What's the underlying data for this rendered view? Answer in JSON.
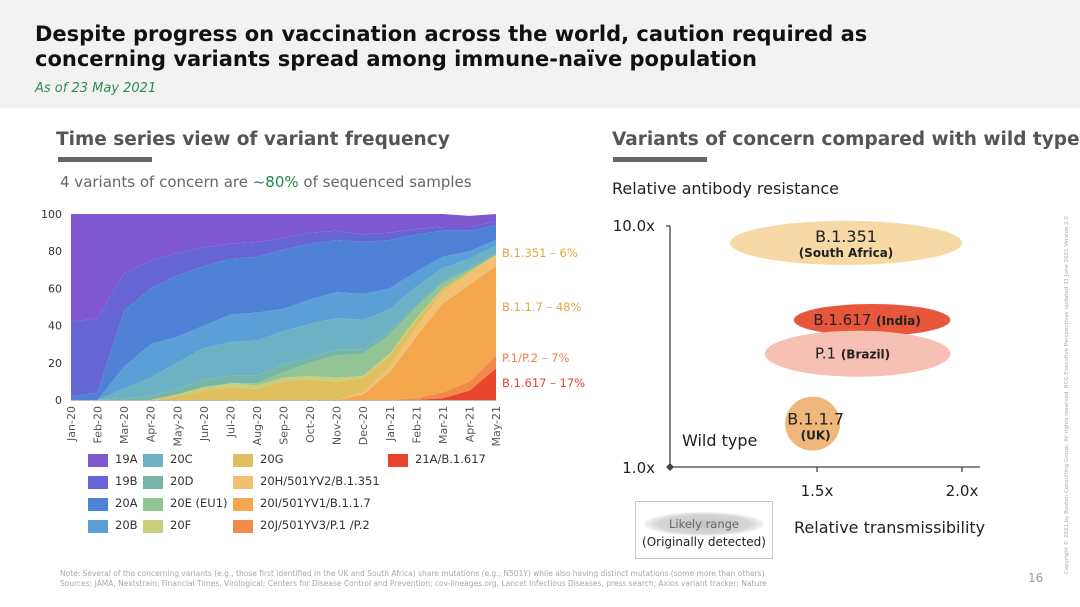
{
  "header": {
    "title_line1": "Despite progress on vaccination across the world, caution required as",
    "title_line2": "concerning variants spread among immune-naïve population",
    "as_of": "As of 23 May 2021"
  },
  "left": {
    "heading": "Time series view of variant frequency",
    "subline_pre": "4 variants of concern are ",
    "subline_hl": "~80%",
    "subline_post": " of sequenced samples"
  },
  "right": {
    "heading": "Variants of concern compared with wild type",
    "ylabel": "Relative antibody resistance",
    "xlabel": "Relative transmissibility",
    "likely_line1": "Likely range",
    "likely_line2": "(Originally detected)"
  },
  "notes": {
    "note": "Note: Several of the concerning variants (e.g., those first identified in the UK and South Africa) share mutations (e.g., N501Y) while also having distinct mutations (some more than others)",
    "sources": "Sources: JAMA, Nextstrain, Financial Times, Virological; Centers for Disease Control and Prevention; cov-lineages.org, Lancet Infectious Diseases, press search; Axios variant tracker; Nature",
    "page": "16",
    "copyright": "Copyright © 2021 by Boston Consulting Group. All rights reserved. BCG Executive Perspectives updated 31 June 2021 Version 2.0"
  },
  "chart_data": [
    {
      "type": "area",
      "stacked": true,
      "ylim": [
        0,
        100
      ],
      "yticks": [
        "0",
        "20",
        "40",
        "60",
        "80",
        "100"
      ],
      "categories": [
        "Jan-20",
        "Feb-20",
        "Mar-20",
        "Apr-20",
        "May-20",
        "Jun-20",
        "Jul-20",
        "Aug-20",
        "Sep-20",
        "Oct-20",
        "Nov-20",
        "Dec-20",
        "Jan-21",
        "Feb-21",
        "Mar-21",
        "Apr-21",
        "May-21"
      ],
      "series": [
        {
          "name": "21A/B.1.617",
          "color": "#e8452c",
          "values": [
            0,
            0,
            0,
            0,
            0,
            0,
            0,
            0,
            0,
            0,
            0,
            0,
            0,
            0,
            1,
            5,
            17
          ]
        },
        {
          "name": "20J/501YV3/P.1 /P.2",
          "color": "#f28a4c",
          "values": [
            0,
            0,
            0,
            0,
            0,
            0,
            0,
            0,
            0,
            0,
            0,
            0,
            0,
            1,
            3,
            5,
            7
          ]
        },
        {
          "name": "20I/501YV1/B.1.1.7",
          "color": "#f4a74d",
          "values": [
            0,
            0,
            0,
            0,
            0,
            0,
            0,
            0,
            0,
            0,
            0,
            3,
            15,
            33,
            48,
            52,
            48
          ]
        },
        {
          "name": "20H/501YV2/B.1.351",
          "color": "#f1c073",
          "values": [
            0,
            0,
            0,
            0,
            0,
            0,
            0,
            0,
            0,
            0,
            0,
            1,
            3,
            5,
            6,
            6,
            6
          ]
        },
        {
          "name": "20G",
          "color": "#e0bf5e",
          "values": [
            0,
            0,
            0,
            0,
            2,
            5,
            7,
            6,
            10,
            11,
            10,
            8,
            6,
            4,
            2,
            1,
            0
          ]
        },
        {
          "name": "20F",
          "color": "#c7cf7a",
          "values": [
            0,
            0,
            0,
            0,
            1,
            2,
            2,
            2,
            2,
            2,
            2,
            1,
            1,
            1,
            0,
            0,
            0
          ]
        },
        {
          "name": "20E (EU1)",
          "color": "#93c494",
          "values": [
            0,
            0,
            0,
            0,
            0,
            0,
            0,
            1,
            3,
            7,
            12,
            12,
            10,
            6,
            3,
            1,
            0
          ]
        },
        {
          "name": "20D",
          "color": "#76b6a6",
          "values": [
            0,
            0,
            1,
            2,
            3,
            4,
            4,
            4,
            4,
            3,
            3,
            2,
            2,
            1,
            1,
            1,
            1
          ]
        },
        {
          "name": "20C",
          "color": "#6cb2c4",
          "values": [
            0,
            0,
            5,
            10,
            14,
            17,
            18,
            19,
            18,
            18,
            17,
            16,
            12,
            10,
            7,
            5,
            4
          ]
        },
        {
          "name": "20B",
          "color": "#5aa0d6",
          "values": [
            0,
            0,
            12,
            18,
            14,
            12,
            15,
            15,
            12,
            13,
            14,
            14,
            11,
            8,
            6,
            4,
            3
          ]
        },
        {
          "name": "20A",
          "color": "#4f82d7",
          "values": [
            2,
            4,
            30,
            30,
            33,
            32,
            30,
            30,
            32,
            30,
            28,
            28,
            26,
            20,
            14,
            11,
            8
          ]
        },
        {
          "name": "19B",
          "color": "#6565d6",
          "values": [
            40,
            40,
            20,
            15,
            12,
            10,
            8,
            8,
            6,
            6,
            5,
            4,
            4,
            3,
            2,
            2,
            2
          ]
        },
        {
          "name": "19A",
          "color": "#7e57d1",
          "values": [
            58,
            56,
            32,
            25,
            21,
            18,
            16,
            15,
            13,
            10,
            9,
            11,
            10,
            8,
            7,
            6,
            4
          ]
        }
      ],
      "end_labels": [
        {
          "text": "B.1.351 – 6%",
          "color": "#e6a63c"
        },
        {
          "text": "B.1.1.7 – 48%",
          "color": "#e6a63c"
        },
        {
          "text": "P.1/P.2 – 7%",
          "color": "#f08050"
        },
        {
          "text": "B.1.617 – 17%",
          "color": "#e8452c"
        }
      ],
      "legend": [
        {
          "label": "19A",
          "color": "#7e57d1"
        },
        {
          "label": "20C",
          "color": "#6cb2c4"
        },
        {
          "label": "20G",
          "color": "#e0bf5e"
        },
        {
          "label": "21A/B.1.617",
          "color": "#e8452c"
        },
        {
          "label": "19B",
          "color": "#6565d6"
        },
        {
          "label": "20D",
          "color": "#76b6a6"
        },
        {
          "label": "20H/501YV2/B.1.351",
          "color": "#f1c073"
        },
        {
          "label": "20A",
          "color": "#4f82d7"
        },
        {
          "label": "20E (EU1)",
          "color": "#93c494"
        },
        {
          "label": "20I/501YV1/B.1.1.7",
          "color": "#f4a74d"
        },
        {
          "label": "20B",
          "color": "#5aa0d6"
        },
        {
          "label": "20F",
          "color": "#c7cf7a"
        },
        {
          "label": "20J/501YV3/P.1 /P.2",
          "color": "#f28a4c"
        }
      ]
    },
    {
      "type": "scatter",
      "xlabel": "Relative transmissibility",
      "ylabel": "Relative antibody resistance",
      "xticks": [
        "1.5x",
        "2.0x"
      ],
      "yticks": [
        "1.0x",
        "10.0x"
      ],
      "origin": {
        "label": "Wild type"
      },
      "points": [
        {
          "name": "B.1.351",
          "sub": "(South Africa)",
          "color": "#f6d9a5",
          "x": [
            1.2,
            2.0
          ],
          "y_level": 0.93
        },
        {
          "name": "B.1.617",
          "sub": "(India)",
          "color": "#e8563c",
          "x": [
            1.42,
            1.96
          ],
          "y_level": 0.61
        },
        {
          "name": "P.1",
          "sub": "(Brazil)",
          "color": "#f6c1b4",
          "x": [
            1.32,
            1.96
          ],
          "y_level": 0.47
        },
        {
          "name": "B.1.1.7",
          "sub": "(UK)",
          "color": "#f0b77c",
          "x": [
            1.39,
            1.58
          ],
          "y_level": 0.18
        }
      ]
    }
  ]
}
